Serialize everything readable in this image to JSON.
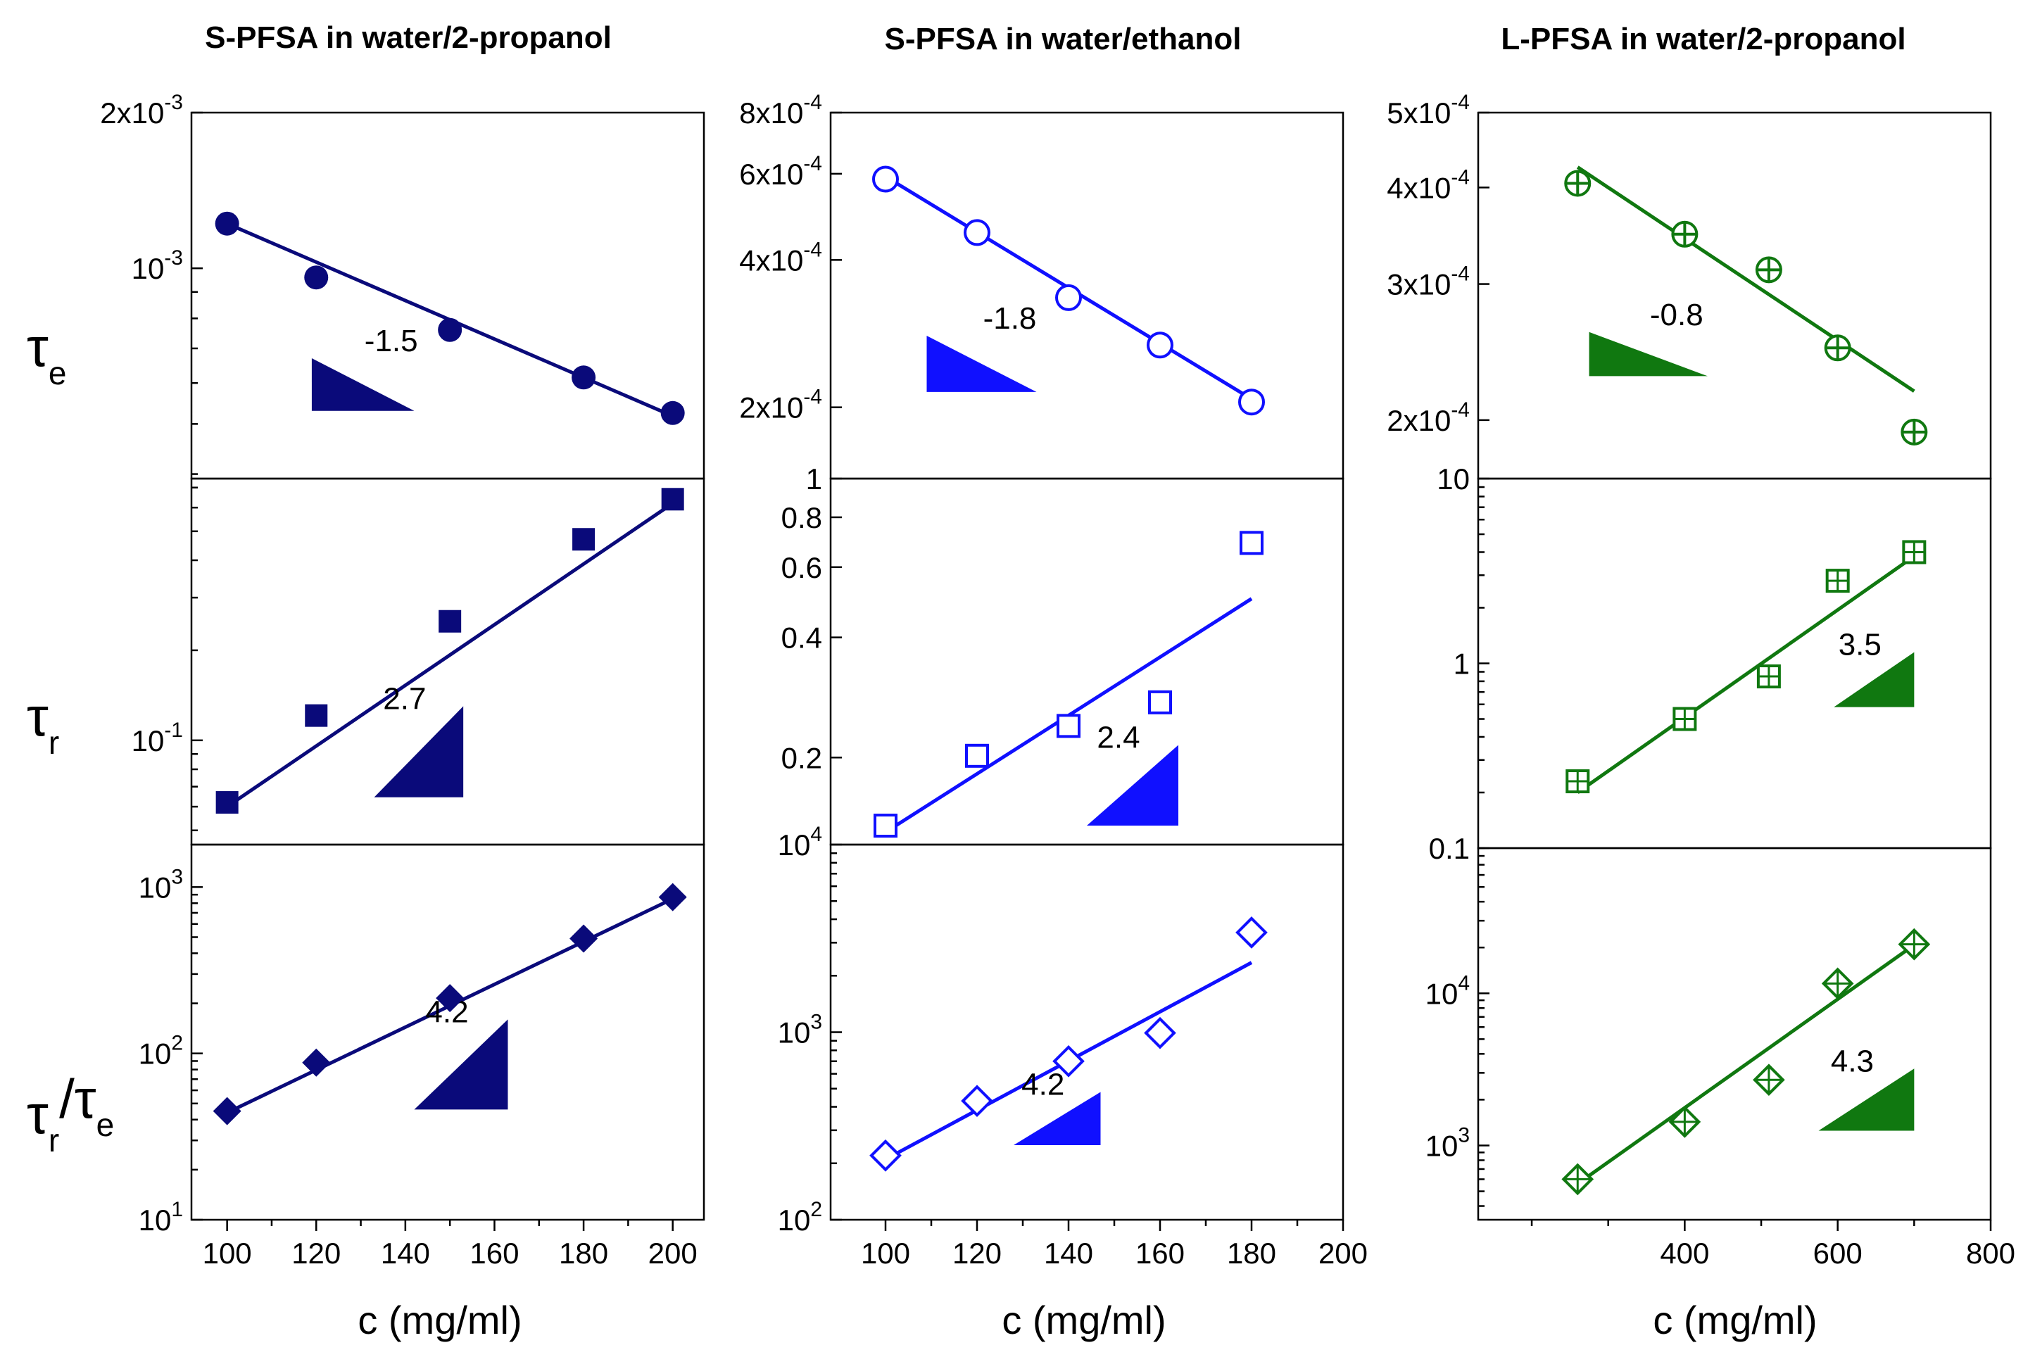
{
  "chart_data": {
    "type": "scatter",
    "layout": "3 columns x 3 rows, log-scale y, shared x within each column",
    "column_titles": [
      "S-PFSA in water/2-propanol",
      "S-PFSA in water/ethanol",
      "L-PFSA in water/2-propanol"
    ],
    "row_ylabels": [
      {
        "main": "τ",
        "sub": "e",
        "text": "τe"
      },
      {
        "main": "τ",
        "sub": "r",
        "text": "τr"
      },
      {
        "main": "τ",
        "sub": "r",
        "sep": "/τ",
        "sub2": "e",
        "text": "τr/τe"
      }
    ],
    "xlabel": "c (mg/ml)",
    "colors": {
      "col1": "#0a0a7a",
      "col2": "#1010ff",
      "col3": "#107810"
    },
    "columns": [
      {
        "xlim": [
          92,
          207
        ],
        "xticks": [
          100,
          120,
          140,
          160,
          180,
          200
        ],
        "xtick_labels": [
          "100",
          "120",
          "140",
          "160",
          "180",
          "200"
        ],
        "minor_xticks": [
          110,
          130,
          150,
          170,
          190
        ],
        "panels": [
          {
            "series": "tau_e",
            "marker": "circle-filled",
            "ylim": [
              0.000392,
              0.002
            ],
            "yticks": [
              0.002,
              0.001
            ],
            "ytick_labels": [
              {
                "base": "2x10",
                "exp": "-3"
              },
              {
                "base": "10",
                "exp": "-3"
              }
            ],
            "minor_yticks": [
              0.0009,
              0.0008,
              0.0007,
              0.0006,
              0.0005,
              0.0004
            ],
            "x": [
              100,
              120,
              150,
              180,
              200
            ],
            "y": [
              0.00122,
              0.00096,
              0.00076,
              0.000615,
              0.000525
            ],
            "fit": {
              "x": [
                100,
                200
              ],
              "y": [
                0.00122,
                0.000518
              ]
            },
            "slope": {
              "label": "-1.5",
              "x0": 119,
              "x1": 142,
              "y0": 0.00067,
              "y1": 0.00053,
              "kind": "down"
            }
          },
          {
            "series": "tau_r",
            "marker": "square-filled",
            "ylim": [
              0.0448,
              0.75
            ],
            "yticks": [
              0.1
            ],
            "ytick_labels": [
              {
                "base": "10",
                "exp": "-1"
              }
            ],
            "minor_yticks": [
              0.05,
              0.06,
              0.07,
              0.08,
              0.09,
              0.2,
              0.3,
              0.4,
              0.5,
              0.6,
              0.7
            ],
            "x": [
              100,
              120,
              150,
              180,
              200
            ],
            "y": [
              0.062,
              0.121,
              0.25,
              0.47,
              0.64
            ],
            "fit": {
              "x": [
                100,
                200
              ],
              "y": [
                0.06,
                0.62
              ]
            },
            "slope": {
              "label": "2.7",
              "x0": 133,
              "x1": 153,
              "y0": 0.0645,
              "y1": 0.13,
              "kind": "up"
            }
          },
          {
            "series": "tau_r_over_tau_e",
            "marker": "diamond-filled",
            "ylim": [
              10,
              1800
            ],
            "yticks": [
              1000,
              100,
              10
            ],
            "ytick_labels": [
              {
                "base": "10",
                "exp": "3"
              },
              {
                "base": "10",
                "exp": "2"
              },
              {
                "base": "10",
                "exp": "1"
              }
            ],
            "minor_yticks": [
              20,
              30,
              40,
              50,
              60,
              70,
              80,
              90,
              200,
              300,
              400,
              500,
              600,
              700,
              800,
              900
            ],
            "x": [
              100,
              120,
              150,
              180,
              200
            ],
            "y": [
              45,
              88,
              215,
              490,
              870
            ],
            "fit": {
              "x": [
                100,
                200
              ],
              "y": [
                44,
                850
              ]
            },
            "slope": {
              "label": "4.2",
              "x0": 142,
              "x1": 163,
              "y0": 46,
              "y1": 160,
              "kind": "up"
            }
          }
        ]
      },
      {
        "xlim": [
          88,
          200
        ],
        "xticks": [
          100,
          120,
          140,
          160,
          180,
          200
        ],
        "xtick_labels": [
          "100",
          "120",
          "140",
          "160",
          "180",
          "200"
        ],
        "minor_xticks": [
          110,
          130,
          150,
          170,
          190
        ],
        "panels": [
          {
            "series": "tau_e",
            "marker": "circle-open",
            "ylim": [
              0.000143,
              0.0008
            ],
            "yticks": [
              0.0008,
              0.0006,
              0.0004,
              0.0002
            ],
            "ytick_labels": [
              {
                "base": "8x10",
                "exp": "-4"
              },
              {
                "base": "6x10",
                "exp": "-4"
              },
              {
                "base": "4x10",
                "exp": "-4"
              },
              {
                "base": "2x10",
                "exp": "-4"
              }
            ],
            "minor_yticks": [],
            "x": [
              100,
              120,
              140,
              160,
              180
            ],
            "y": [
              0.000585,
              0.000455,
              0.000335,
              0.000268,
              0.000205
            ],
            "fit": {
              "x": [
                100,
                180
              ],
              "y": [
                0.000592,
                0.000208
              ]
            },
            "slope": {
              "label": "-1.8",
              "x0": 109,
              "x1": 133,
              "y0": 0.00028,
              "y1": 0.000215,
              "kind": "down"
            }
          },
          {
            "series": "tau_r",
            "marker": "square-open",
            "ylim": [
              0.121,
              1
            ],
            "yticks": [
              1,
              0.8,
              0.6,
              0.4,
              0.2
            ],
            "ytick_labels": [
              {
                "base": "1",
                "exp": ""
              },
              {
                "base": "0.8",
                "exp": ""
              },
              {
                "base": "0.6",
                "exp": ""
              },
              {
                "base": "0.4",
                "exp": ""
              },
              {
                "base": "0.2",
                "exp": ""
              }
            ],
            "minor_yticks": [],
            "x": [
              100,
              120,
              140,
              160,
              180
            ],
            "y": [
              0.135,
              0.202,
              0.24,
              0.275,
              0.69
            ],
            "fit": {
              "x": [
                100,
                180
              ],
              "y": [
                0.13,
                0.5
              ]
            },
            "slope": {
              "label": "2.4",
              "x0": 144,
              "x1": 164,
              "y0": 0.135,
              "y1": 0.215,
              "kind": "up"
            }
          },
          {
            "series": "tau_r_over_tau_e",
            "marker": "diamond-open",
            "ylim": [
              100,
              10000
            ],
            "yticks": [
              10000,
              1000,
              100
            ],
            "ytick_labels": [
              {
                "base": "10",
                "exp": "4"
              },
              {
                "base": "10",
                "exp": "3"
              },
              {
                "base": "10",
                "exp": "2"
              }
            ],
            "minor_yticks": [
              200,
              300,
              400,
              500,
              600,
              700,
              800,
              900,
              2000,
              3000,
              4000,
              5000,
              6000,
              7000,
              8000,
              9000
            ],
            "x": [
              100,
              120,
              140,
              160,
              180
            ],
            "y": [
              220,
              430,
              700,
              990,
              3400
            ],
            "fit": {
              "x": [
                100,
                180
              ],
              "y": [
                210,
                2350
              ]
            },
            "slope": {
              "label": "4.2",
              "x0": 128,
              "x1": 147,
              "y0": 250,
              "y1": 480,
              "kind": "up"
            }
          }
        ]
      },
      {
        "xlim": [
          130,
          800
        ],
        "xticks": [
          400,
          600,
          800
        ],
        "xtick_labels": [
          "400",
          "600",
          "800"
        ],
        "minor_xticks": [
          200,
          300,
          500,
          700
        ],
        "panels": [
          {
            "series": "tau_e",
            "marker": "circle-cross",
            "ylim": [
              0.000168,
              0.0005
            ],
            "yticks": [
              0.0005,
              0.0004,
              0.0003,
              0.0002
            ],
            "ytick_labels": [
              {
                "base": "5x10",
                "exp": "-4"
              },
              {
                "base": "4x10",
                "exp": "-4"
              },
              {
                "base": "3x10",
                "exp": "-4"
              },
              {
                "base": "2x10",
                "exp": "-4"
              }
            ],
            "minor_yticks": [],
            "x": [
              260,
              400,
              510,
              600,
              700
            ],
            "y": [
              0.000405,
              0.000348,
              0.000313,
              0.000248,
              0.000193
            ],
            "fit": {
              "x": [
                260,
                700
              ],
              "y": [
                0.000425,
                0.000218
              ]
            },
            "slope": {
              "label": "-0.8",
              "x0": 275,
              "x1": 430,
              "y0": 0.00026,
              "y1": 0.000228,
              "kind": "down"
            }
          },
          {
            "series": "tau_r",
            "marker": "square-grid",
            "ylim": [
              0.1,
              10
            ],
            "yticks": [
              10,
              1,
              0.1
            ],
            "ytick_labels": [
              {
                "base": "10",
                "exp": ""
              },
              {
                "base": "1",
                "exp": ""
              },
              {
                "base": "0.1",
                "exp": ""
              }
            ],
            "minor_yticks": [
              0.2,
              0.3,
              0.4,
              0.5,
              0.6,
              0.7,
              0.8,
              0.9,
              2,
              3,
              4,
              5,
              6,
              7,
              8,
              9
            ],
            "x": [
              260,
              400,
              510,
              600,
              700
            ],
            "y": [
              0.23,
              0.5,
              0.85,
              2.8,
              4.0
            ],
            "fit": {
              "x": [
                260,
                700
              ],
              "y": [
                0.2,
                3.8
              ]
            },
            "slope": {
              "label": "3.5",
              "x0": 595,
              "x1": 700,
              "y0": 0.58,
              "y1": 1.15,
              "kind": "up"
            }
          },
          {
            "series": "tau_r_over_tau_e",
            "marker": "diamond-cross",
            "ylim": [
              325,
              90000
            ],
            "yticks": [
              10000,
              1000
            ],
            "ytick_labels": [
              {
                "base": "10",
                "exp": "4"
              },
              {
                "base": "10",
                "exp": "3"
              }
            ],
            "minor_yticks": [
              400,
              500,
              600,
              700,
              800,
              900,
              2000,
              3000,
              4000,
              5000,
              6000,
              7000,
              8000,
              9000,
              20000,
              30000,
              40000,
              50000,
              60000,
              70000,
              80000,
              90000
            ],
            "x": [
              260,
              400,
              510,
              600,
              700
            ],
            "y": [
              600,
              1430,
              2700,
              11600,
              21000
            ],
            "fit": {
              "x": [
                260,
                700
              ],
              "y": [
                560,
                20800
              ]
            },
            "slope": {
              "label": "4.3",
              "x0": 575,
              "x1": 700,
              "y0": 1250,
              "y1": 3200,
              "kind": "up"
            }
          }
        ]
      }
    ]
  }
}
